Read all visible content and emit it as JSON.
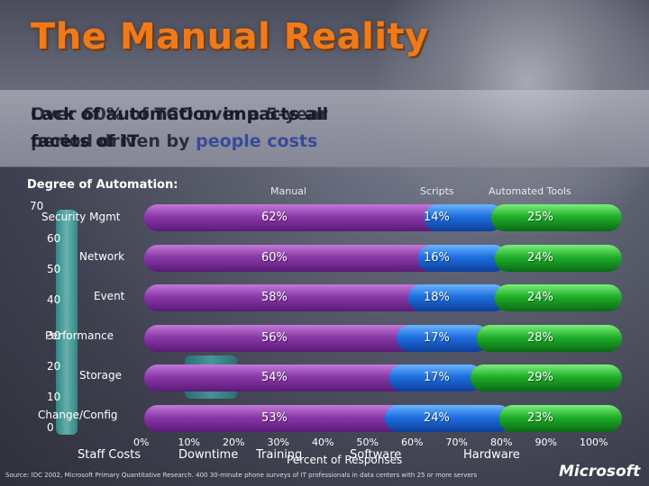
{
  "title": "The Manual Reality",
  "callout": {
    "overlap_a_line1": "Lack of automation impacts all",
    "overlap_a_line2": "facets of IT",
    "overlap_b_line1": "Over 60% of TCO over a 5-year",
    "overlap_b_line2": "period driven by ",
    "overlap_b_accent": "people costs"
  },
  "degree_label": "Degree of Automation:",
  "columns": [
    "Manual",
    "Scripts",
    "Automated Tools"
  ],
  "left_ticks": [
    "70",
    "60",
    "50",
    "40",
    "30",
    "20",
    "10",
    "0"
  ],
  "left_categories": [
    "Security Mgmt",
    "Network",
    "Event",
    "Performance",
    "Storage",
    "Change/Config"
  ],
  "x_ticks": [
    "0%",
    "10%",
    "20%",
    "30%",
    "40%",
    "50%",
    "60%",
    "70%",
    "80%",
    "90%",
    "100%"
  ],
  "x_categories": [
    "Staff Costs",
    "Downtime",
    "Training",
    "Software",
    "Hardware"
  ],
  "x_axis_label": "Percent of Responses",
  "source": "Source: IDC 2002, Microsoft Primary Quantitative Research. 400 30-minute phone surveys of IT professionals in data centers with 25 or more servers",
  "logo": "Microsoft",
  "chart_data": {
    "type": "bar",
    "orientation": "horizontal-stacked",
    "categories": [
      "Security Mgmt",
      "Network",
      "Event",
      "Performance",
      "Storage",
      "Change/Config"
    ],
    "series": [
      {
        "name": "Manual",
        "values": [
          62,
          60,
          58,
          56,
          54,
          53
        ],
        "labels": [
          "62%",
          "60%",
          "58%",
          "56%",
          "54%",
          "53%"
        ],
        "color": "#8a3aa8"
      },
      {
        "name": "Scripts",
        "values": [
          14,
          16,
          18,
          17,
          17,
          24
        ],
        "labels": [
          "14%",
          "16%",
          "18%",
          "17%",
          "17%",
          "24%"
        ],
        "color": "#1f6fe0"
      },
      {
        "name": "Automated Tools",
        "values": [
          25,
          24,
          24,
          28,
          29,
          23
        ],
        "labels": [
          "25%",
          "24%",
          "24%",
          "28%",
          "29%",
          "23%"
        ],
        "color": "#1fb02a"
      }
    ],
    "xlim": [
      0,
      100
    ]
  }
}
